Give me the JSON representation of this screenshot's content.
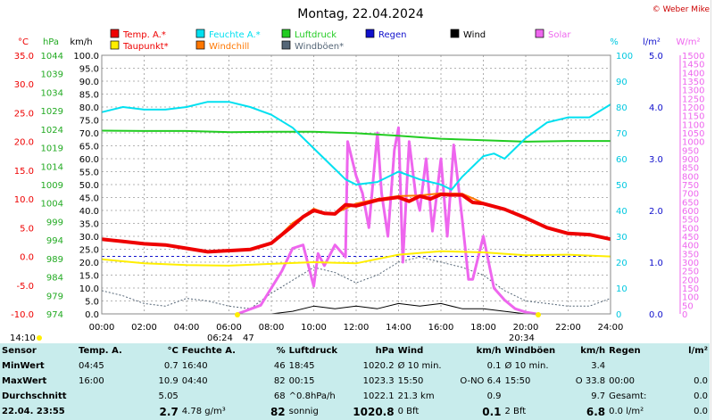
{
  "header": {
    "title": "Montag, 22.04.2024",
    "copyright": "© Weber Mike"
  },
  "legend": [
    {
      "label": "Temp. A.*",
      "color": "#ee0000"
    },
    {
      "label": "Feuchte A.*",
      "color": "#00e0f0"
    },
    {
      "label": "Luftdruck",
      "color": "#22cc22"
    },
    {
      "label": "Regen",
      "color": "#1010cc"
    },
    {
      "label": "Wind",
      "color": "#000000"
    },
    {
      "label": "Solar",
      "color": "#ee66ee"
    },
    {
      "label": "Taupunkt*",
      "color": "#ffee00"
    },
    {
      "label": "Windchill",
      "color": "#ff7700"
    },
    {
      "label": "Windböen*",
      "color": "#556677"
    }
  ],
  "axes": {
    "temp_unit": "°C",
    "hpa_unit": "hPa",
    "kmh_unit": "km/h",
    "pct_unit": "%",
    "lm2_unit": "l/m²",
    "wm2_unit": "W/m²",
    "temp_ticks": [
      "35.0",
      "30.0",
      "25.0",
      "20.0",
      "15.0",
      "10.0",
      "5.0",
      "0.0",
      "-5.0",
      "-10.0"
    ],
    "hpa_ticks": [
      "1044",
      "1039",
      "1034",
      "1029",
      "1024",
      "1019",
      "1014",
      "1009",
      "1004",
      "999",
      "994",
      "989",
      "984",
      "979",
      "974"
    ],
    "kmh_ticks": [
      "100.0",
      "95.0",
      "90.0",
      "85.0",
      "80.0",
      "75.0",
      "70.0",
      "65.0",
      "60.0",
      "55.0",
      "50.0",
      "45.0",
      "40.0",
      "35.0",
      "30.0",
      "25.0",
      "20.0",
      "15.0",
      "10.0",
      "5.0",
      "0.0"
    ],
    "pct_ticks": [
      "100",
      "90",
      "80",
      "70",
      "60",
      "50",
      "40",
      "30",
      "20",
      "10",
      "0"
    ],
    "lm2_ticks": [
      "5.0",
      "4.0",
      "3.0",
      "2.0",
      "1.0",
      "0.0"
    ],
    "wm2_ticks": [
      "1500",
      "1450",
      "1400",
      "1350",
      "1300",
      "1250",
      "1200",
      "1150",
      "1100",
      "1050",
      "1000",
      "950",
      "900",
      "850",
      "800",
      "750",
      "700",
      "650",
      "600",
      "550",
      "500",
      "450",
      "400",
      "350",
      "300",
      "250",
      "200",
      "150",
      "100",
      "50",
      "0"
    ],
    "time_ticks": [
      "00:00",
      "02:00",
      "04:00",
      "06:00",
      "08:00",
      "10:00",
      "12:00",
      "14:00",
      "16:00",
      "18:00",
      "20:00",
      "22:00",
      "24:00"
    ],
    "sunrise": "06:24",
    "sunrise_az": "47",
    "sunset": "20:34",
    "now": "14:10"
  },
  "chart_data": {
    "type": "line",
    "title": "Montag, 22.04.2024",
    "x_unit": "hour",
    "xlim": [
      0,
      24
    ],
    "series": [
      {
        "name": "Temp. A.*",
        "unit": "°C",
        "color": "#ee0000",
        "x": [
          0,
          1,
          2,
          3,
          4,
          5,
          6,
          7,
          8,
          9,
          9.5,
          10,
          10.5,
          11,
          11.5,
          12,
          13,
          14,
          14.5,
          15,
          15.5,
          16,
          16.5,
          17,
          17.5,
          18,
          19,
          20,
          21,
          22,
          23,
          24
        ],
        "y": [
          3.0,
          2.6,
          2.2,
          2.0,
          1.4,
          0.8,
          1.0,
          1.2,
          2.3,
          5.3,
          6.9,
          8.0,
          7.5,
          7.4,
          9.0,
          8.8,
          9.8,
          10.3,
          9.6,
          10.5,
          10.0,
          10.8,
          10.7,
          10.7,
          9.4,
          9.2,
          8.2,
          6.7,
          5.0,
          4.0,
          3.8,
          3.0
        ]
      },
      {
        "name": "Feuchte A.*",
        "unit": "%",
        "color": "#00e0f0",
        "x": [
          0,
          1,
          2,
          3,
          4,
          5,
          6,
          7,
          8,
          9,
          10,
          11,
          11.5,
          12,
          13,
          14,
          15,
          16,
          16.5,
          17,
          18,
          18.5,
          19,
          20,
          21,
          22,
          23,
          24
        ],
        "y": [
          78,
          80,
          79,
          79,
          80,
          82,
          82,
          80,
          77,
          72,
          64,
          56,
          52,
          50,
          51,
          55,
          52,
          50,
          48,
          53,
          61,
          62,
          60,
          68,
          74,
          76,
          76,
          81
        ]
      },
      {
        "name": "Luftdruck",
        "unit": "hPa",
        "color": "#22cc22",
        "x": [
          0,
          2,
          4,
          6,
          8,
          10,
          12,
          14,
          16,
          18,
          20,
          22,
          24
        ],
        "y": [
          1023.6,
          1023.5,
          1023.5,
          1023.2,
          1023.3,
          1023.3,
          1022.9,
          1022.2,
          1021.4,
          1021.0,
          1020.6,
          1020.8,
          1020.8
        ]
      },
      {
        "name": "Taupunkt*",
        "unit": "°C",
        "color": "#ffee00",
        "x": [
          0,
          2,
          4,
          6,
          8,
          10,
          12,
          14,
          16,
          18,
          20,
          22,
          24
        ],
        "y": [
          -0.5,
          -1.2,
          -1.5,
          -1.6,
          -1.3,
          -1.0,
          -1.2,
          0.3,
          0.9,
          0.7,
          0.2,
          0.3,
          0.0
        ]
      },
      {
        "name": "Windchill",
        "unit": "°C",
        "color": "#ff7700",
        "x": [
          8,
          9,
          9.5,
          10,
          10.5,
          11,
          12,
          13,
          14,
          15,
          16,
          17,
          18
        ],
        "y": [
          2.2,
          5.8,
          7.0,
          8.3,
          7.6,
          7.5,
          9.2,
          10.0,
          10.5,
          10.6,
          11.0,
          10.9,
          9.3
        ]
      },
      {
        "name": "Wind",
        "unit": "km/h",
        "color": "#000000",
        "x": [
          0,
          4,
          8,
          9,
          10,
          11,
          12,
          13,
          14,
          15,
          16,
          17,
          18,
          19,
          20,
          24
        ],
        "y": [
          0,
          0,
          0,
          1,
          3,
          2,
          3,
          2,
          4,
          3,
          4,
          2,
          2,
          1,
          0,
          0
        ]
      },
      {
        "name": "Windböen*",
        "unit": "km/h",
        "color": "#556677",
        "x": [
          0,
          1,
          2,
          3,
          4,
          5,
          6,
          7,
          8,
          9,
          10,
          11,
          12,
          13,
          14,
          15,
          16,
          17,
          18,
          19,
          20,
          21,
          22,
          23,
          24
        ],
        "y": [
          9,
          7,
          4,
          3,
          6,
          5,
          3,
          2,
          8,
          13,
          18,
          16,
          12,
          15,
          20,
          22,
          20,
          18,
          15,
          9,
          5,
          4,
          3,
          3,
          6
        ]
      },
      {
        "name": "Solar",
        "unit": "W/m²",
        "color": "#ee66ee",
        "x": [
          6.4,
          7.5,
          8,
          8.5,
          9,
          9.5,
          10,
          10.2,
          10.5,
          11,
          11.5,
          11.6,
          12,
          12.3,
          12.6,
          13,
          13.2,
          13.5,
          13.8,
          14,
          14.2,
          14.5,
          14.8,
          15,
          15.3,
          15.6,
          16,
          16.3,
          16.6,
          17,
          17.3,
          17.5,
          18,
          18.5,
          19,
          19.5,
          20,
          20.5
        ],
        "y": [
          0,
          50,
          150,
          250,
          380,
          400,
          160,
          350,
          280,
          400,
          330,
          1000,
          800,
          700,
          500,
          1050,
          700,
          450,
          950,
          1080,
          300,
          1000,
          700,
          600,
          900,
          480,
          900,
          450,
          980,
          550,
          200,
          200,
          450,
          150,
          80,
          30,
          10,
          0
        ]
      }
    ],
    "guide_lines": [
      {
        "name": "0.0 °C",
        "color": "#1010cc",
        "y": 0.0
      }
    ]
  },
  "stats": {
    "headers": [
      "Sensor",
      "Temp. A.",
      "°C",
      "Feuchte A.",
      "%",
      "Luftdruck",
      "hPa",
      "Wind",
      "km/h",
      "Windböen",
      "km/h",
      "Regen",
      "l/m²"
    ],
    "rows": [
      [
        "MinWert",
        "04:45",
        "0.7",
        "16:40",
        "46",
        "18:45",
        "1020.2",
        "Ø 10 min.",
        "0.1",
        "Ø 10 min.",
        "3.4",
        "",
        ""
      ],
      [
        "MaxWert",
        "16:00",
        "10.9",
        "04:40",
        "82",
        "00:15",
        "1023.3",
        "15:50",
        "O-NO 6.4",
        "15:50",
        "O 33.8",
        "00:00",
        "0.0"
      ],
      [
        "Durchschnitt",
        "",
        "5.05",
        "",
        "68",
        "^0.8hPa/h",
        "1022.1",
        "21.3 km",
        "0.9",
        "",
        "9.7",
        "Gesamt:",
        "0.0"
      ],
      [
        "22.04. 23:55",
        "",
        "2.7",
        "4.78 g/m³",
        "82",
        "sonnig",
        "1020.8",
        "0 Bft",
        "0.1",
        "2 Bft",
        "6.8",
        "0.0 l/m²",
        "0.0"
      ]
    ]
  }
}
